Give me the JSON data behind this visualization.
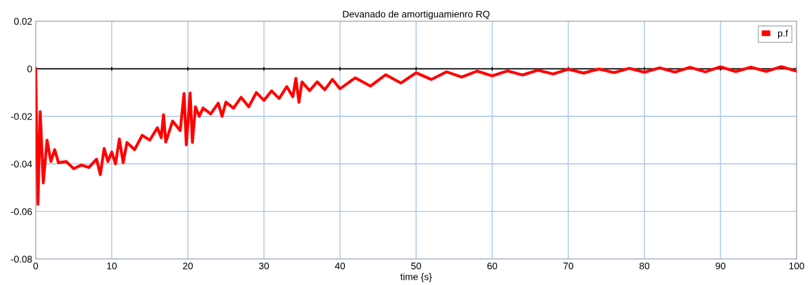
{
  "chart_data": {
    "type": "line",
    "title": "Devanado de amortiguamienro RQ",
    "xlabel": "time {s}",
    "x": [
      0,
      0.3,
      0.6,
      1,
      1.5,
      2,
      2.5,
      3,
      4,
      5,
      6,
      7,
      8,
      8.5,
      9,
      9.5,
      10,
      10.5,
      11,
      11.5,
      12,
      13,
      14,
      15,
      16,
      16.5,
      16.8,
      17.1,
      18,
      19,
      19.5,
      19.8,
      20.3,
      20.6,
      21,
      21.5,
      22,
      23,
      24,
      24.5,
      25,
      26,
      27,
      28,
      29,
      30,
      31,
      32,
      33,
      33.8,
      34.2,
      34.6,
      35,
      36,
      37,
      38,
      39,
      40,
      42,
      44,
      46,
      48,
      50,
      52,
      54,
      56,
      58,
      60,
      62,
      64,
      66,
      68,
      70,
      72,
      74,
      76,
      78,
      80,
      82,
      84,
      86,
      88,
      90,
      92,
      94,
      96,
      98,
      100
    ],
    "series": [
      {
        "name": "p.f",
        "color": "#ff0000",
        "values": [
          0,
          -0.057,
          -0.018,
          -0.048,
          -0.03,
          -0.039,
          -0.034,
          -0.0395,
          -0.039,
          -0.042,
          -0.0405,
          -0.0415,
          -0.038,
          -0.0445,
          -0.0335,
          -0.039,
          -0.035,
          -0.04,
          -0.0295,
          -0.0395,
          -0.031,
          -0.034,
          -0.028,
          -0.03,
          -0.0248,
          -0.029,
          -0.0193,
          -0.0308,
          -0.022,
          -0.026,
          -0.0104,
          -0.032,
          -0.0102,
          -0.031,
          -0.016,
          -0.02,
          -0.0165,
          -0.019,
          -0.0145,
          -0.02,
          -0.014,
          -0.0166,
          -0.012,
          -0.016,
          -0.01,
          -0.0133,
          -0.0093,
          -0.0125,
          -0.0075,
          -0.0118,
          -0.004,
          -0.0141,
          -0.0055,
          -0.0092,
          -0.0055,
          -0.0088,
          -0.0045,
          -0.0084,
          -0.0038,
          -0.0073,
          -0.0025,
          -0.006,
          -0.0017,
          -0.0045,
          -0.0013,
          -0.0035,
          -0.001,
          -0.003,
          -0.0009,
          -0.0026,
          -0.0006,
          -0.0022,
          -0.0002,
          -0.0018,
          -0.0001,
          -0.0016,
          0.0002,
          -0.0015,
          0.0004,
          -0.0014,
          0.0006,
          -0.0013,
          0.0008,
          -0.0012,
          0.0007,
          -0.0011,
          0.0009,
          -0.001
        ]
      }
    ],
    "xlim": [
      0,
      100
    ],
    "xticks": [
      0,
      10,
      20,
      30,
      40,
      50,
      60,
      70,
      80,
      90,
      100
    ],
    "ylim": [
      -0.08,
      0.02
    ],
    "yticks": [
      {
        "value": -0.08,
        "label": "-0.08"
      },
      {
        "value": -0.06,
        "label": "-0.06"
      },
      {
        "value": -0.04,
        "label": "-0.04"
      },
      {
        "value": -0.02,
        "label": "-0.02"
      },
      {
        "value": 0,
        "label": "0"
      },
      {
        "value": 0.02,
        "label": "0.02"
      }
    ],
    "ref_lines": [
      {
        "axis": "y",
        "value": 0,
        "color": "#000000",
        "line_style": "solid"
      }
    ],
    "grid": true,
    "legend": "top right",
    "marker": "none",
    "line_style": "solid"
  }
}
